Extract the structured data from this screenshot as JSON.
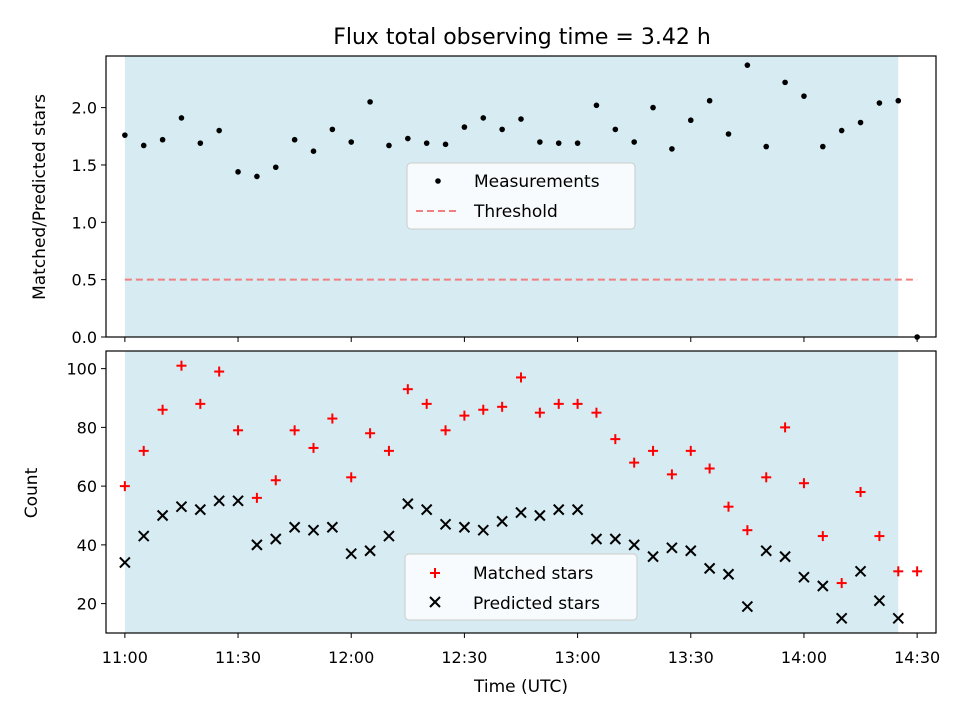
{
  "chart_data": [
    {
      "type": "scatter",
      "title": "Flux total observing time = 3.42 h",
      "ylabel": "Matched/Predicted stars",
      "xlim": [
        "10:55",
        "14:35"
      ],
      "ylim": [
        0,
        2.45
      ],
      "yticks": [
        "0.0",
        "0.5",
        "1.0",
        "1.5",
        "2.0"
      ],
      "shaded_interval": [
        "11:00",
        "14:25"
      ],
      "threshold": 0.5,
      "legend": {
        "position": "center",
        "entries": [
          "Measurements",
          "Threshold"
        ]
      },
      "colors": {
        "measurements": "#000000",
        "threshold": "#f08080",
        "shade": "#add8e6"
      },
      "x": [
        "11:00",
        "11:05",
        "11:10",
        "11:15",
        "11:20",
        "11:25",
        "11:30",
        "11:35",
        "11:40",
        "11:45",
        "11:50",
        "11:55",
        "12:00",
        "12:05",
        "12:10",
        "12:15",
        "12:20",
        "12:25",
        "12:30",
        "12:35",
        "12:40",
        "12:45",
        "12:50",
        "12:55",
        "13:00",
        "13:05",
        "13:10",
        "13:15",
        "13:20",
        "13:25",
        "13:30",
        "13:35",
        "13:40",
        "13:45",
        "13:50",
        "13:55",
        "14:00",
        "14:05",
        "14:10",
        "14:15",
        "14:20",
        "14:25",
        "14:30"
      ],
      "series": [
        {
          "name": "Measurements",
          "values": [
            1.76,
            1.67,
            1.72,
            1.91,
            1.69,
            1.8,
            1.44,
            1.4,
            1.48,
            1.72,
            1.62,
            1.81,
            1.7,
            2.05,
            1.67,
            1.73,
            1.69,
            1.68,
            1.83,
            1.91,
            1.81,
            1.9,
            1.7,
            1.69,
            1.69,
            2.02,
            1.81,
            1.7,
            2.0,
            1.64,
            1.89,
            2.06,
            1.77,
            2.37,
            1.66,
            2.22,
            2.1,
            1.66,
            1.8,
            1.87,
            2.04,
            2.06,
            0.0
          ]
        }
      ]
    },
    {
      "type": "scatter",
      "xlabel": "Time (UTC)",
      "ylabel": "Count",
      "xlim": [
        "10:55",
        "14:35"
      ],
      "ylim": [
        10,
        106
      ],
      "yticks": [
        "20",
        "40",
        "60",
        "80",
        "100"
      ],
      "xticks": [
        "11:00",
        "11:30",
        "12:00",
        "12:30",
        "13:00",
        "13:30",
        "14:00",
        "14:30"
      ],
      "shaded_interval": [
        "11:00",
        "14:25"
      ],
      "legend": {
        "position": "bottom-center",
        "entries": [
          "Matched stars",
          "Predicted stars"
        ]
      },
      "colors": {
        "matched": "#ff0000",
        "predicted": "#000000"
      },
      "x": [
        "11:00",
        "11:05",
        "11:10",
        "11:15",
        "11:20",
        "11:25",
        "11:30",
        "11:35",
        "11:40",
        "11:45",
        "11:50",
        "11:55",
        "12:00",
        "12:05",
        "12:10",
        "12:15",
        "12:20",
        "12:25",
        "12:30",
        "12:35",
        "12:40",
        "12:45",
        "12:50",
        "12:55",
        "13:00",
        "13:05",
        "13:10",
        "13:15",
        "13:20",
        "13:25",
        "13:30",
        "13:35",
        "13:40",
        "13:45",
        "13:50",
        "13:55",
        "14:00",
        "14:05",
        "14:10",
        "14:15",
        "14:20",
        "14:25",
        "14:30"
      ],
      "series": [
        {
          "name": "Matched stars",
          "values": [
            60,
            72,
            86,
            101,
            88,
            99,
            79,
            56,
            62,
            79,
            73,
            83,
            63,
            78,
            72,
            93,
            88,
            79,
            84,
            86,
            87,
            97,
            85,
            88,
            88,
            85,
            76,
            68,
            72,
            64,
            72,
            66,
            53,
            45,
            63,
            80,
            61,
            43,
            27,
            58,
            43,
            31,
            31
          ]
        },
        {
          "name": "Predicted stars",
          "values": [
            34,
            43,
            50,
            53,
            52,
            55,
            55,
            40,
            42,
            46,
            45,
            46,
            37,
            38,
            43,
            54,
            52,
            47,
            46,
            45,
            48,
            51,
            50,
            52,
            52,
            42,
            42,
            40,
            36,
            39,
            38,
            32,
            30,
            19,
            38,
            36,
            29,
            26,
            15,
            31,
            21,
            15,
            null
          ]
        }
      ]
    }
  ]
}
